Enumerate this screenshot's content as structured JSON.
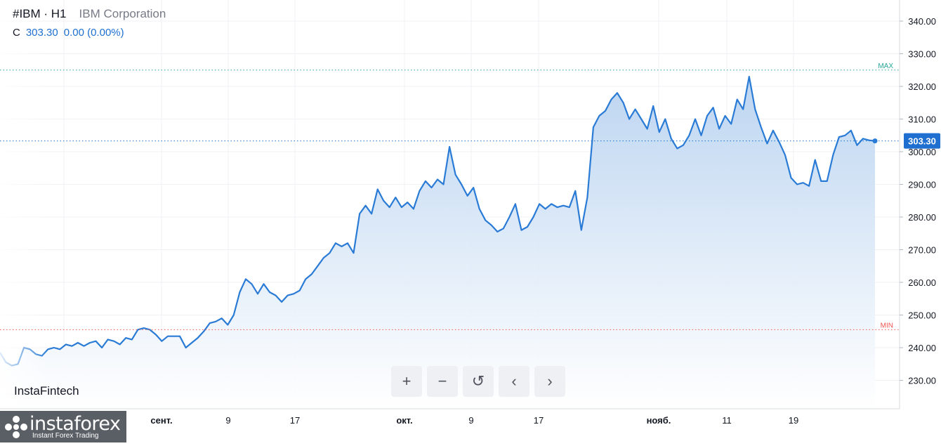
{
  "header": {
    "ticker": "#IBM · H1",
    "company": "IBM Corporation",
    "close_label": "C",
    "close_value": "303.30",
    "change": "0.00 (0.00%)"
  },
  "brand": {
    "watermark": "InstaFintech",
    "logo_name": "instaforex",
    "logo_tagline": "Instant Forex Trading"
  },
  "toolbar": {
    "zoom_in": "+",
    "zoom_out": "−",
    "reset": "↺",
    "prev": "‹",
    "next": "›"
  },
  "colors": {
    "line": "#2a7bd6",
    "fill": "#c4dbf3",
    "max": "#26a69a",
    "min": "#ef5350",
    "price_tag": "#1e6fd0"
  },
  "chart_data": {
    "type": "area",
    "ylim": [
      221,
      345
    ],
    "yticks": [
      "230.00",
      "240.00",
      "250.00",
      "260.00",
      "270.00",
      "280.00",
      "290.00",
      "300.00",
      "310.00",
      "320.00",
      "330.00",
      "340.00"
    ],
    "xticks": [
      "сент.",
      "9",
      "17",
      "окт.",
      "9",
      "17",
      "нояб.",
      "11",
      "19"
    ],
    "max_level": 325,
    "max_label": "MAX",
    "min_level": 245.5,
    "min_label": "MIN",
    "last_price": "303.30",
    "series": [
      {
        "values": [
          238.5,
          235.5,
          234.5,
          235,
          240,
          239.5,
          238,
          237.5,
          239.5,
          240,
          239.5,
          241,
          240.5,
          241.5,
          240.5,
          241.5,
          242,
          240,
          242.5,
          242,
          241,
          243,
          242.5,
          245.5,
          246,
          245.5,
          244,
          242,
          243.5,
          243.5,
          243.5,
          240,
          241.5,
          243,
          245,
          247.5,
          248,
          249,
          247,
          250,
          257,
          261,
          259.5,
          256.5,
          259.5,
          257,
          256,
          254,
          256,
          256.5,
          257.5,
          261,
          262.5,
          265,
          267.5,
          269,
          272,
          271,
          272,
          269,
          281,
          283.5,
          281,
          288.5,
          285,
          283,
          286,
          283,
          284.5,
          282.5,
          288,
          291,
          289,
          291.5,
          290,
          301.5,
          293,
          290,
          286.5,
          289,
          282.5,
          279,
          277.5,
          275.5,
          276.5,
          280,
          284,
          276,
          277,
          280,
          284,
          282.5,
          284,
          283,
          283.5,
          283,
          288,
          276,
          286,
          307.5,
          311,
          312.5,
          316,
          318,
          315,
          310,
          313,
          310,
          307,
          314,
          306,
          310,
          304,
          301,
          302,
          305,
          310,
          305,
          311,
          313.5,
          307,
          311,
          308.5,
          316,
          313,
          323,
          313,
          307.5,
          302.5,
          306.5,
          303,
          299,
          292,
          290,
          290.5,
          289.5,
          297.5,
          291,
          291,
          299,
          304.5,
          305,
          306.5,
          302,
          304,
          303.5,
          303.3
        ]
      }
    ]
  }
}
